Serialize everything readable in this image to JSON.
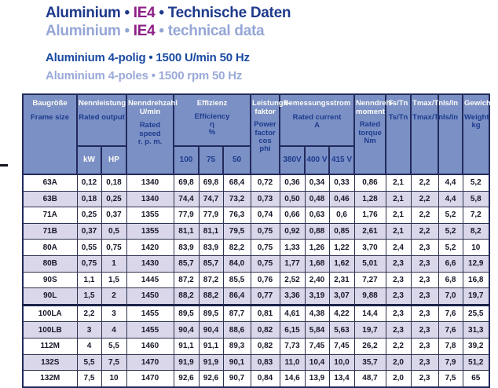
{
  "colors": {
    "header_bg": "#7b90c5",
    "row_alt": "#d9d7e9",
    "border_navy": "#222a5c",
    "title_blue": "#1e3a8c",
    "title_purple": "#8e1f87",
    "title_light_blue": "#95a6d6",
    "subtitle_blue": "#1b4aa2",
    "subtitle_light_blue": "#9aa9d8",
    "header_text_white": "#fdfcf6",
    "header_text_navy": "#1e3c8e",
    "data_text": "#18182a"
  },
  "header": {
    "bullet": "•",
    "title_de": {
      "brand": "Aluminium",
      "ie_class": "IE4",
      "rest": "Technische Daten"
    },
    "title_en": {
      "brand": "Aluminium",
      "ie_class": "IE4",
      "rest": "technical data"
    },
    "subtitle_de": "Aluminium 4-polig • 1500 U/min 50 Hz",
    "subtitle_en": "Aluminium 4-poles • 1500 rpm 50 Hz"
  },
  "table": {
    "header": {
      "frame_de": "Baugröße",
      "frame_en": "Frame size",
      "output_de": "Nennleistung",
      "output_en": "Rated output",
      "kw": "kW",
      "hp": "HP",
      "speed_de": "Nenndrehzahl\nU/min",
      "speed_en": "Rated speed\nr. p. m.",
      "eff_de": "Effizienz",
      "eff_en": "Efficiency\nη\n%",
      "eff100": "100",
      "eff75": "75",
      "eff50": "50",
      "pf_de": "Leistungs-\nfaktor",
      "pf_en": "Power\nfactor\ncos phi",
      "current_de": "Bemessungsstrom",
      "current_en": "Rated current\nA",
      "v380": "380V",
      "v400": "400 V",
      "v415": "415 V",
      "torque_de": "Nenndreh-\nmoment",
      "torque_en": "Rated\ntorque\nNm",
      "ts_de": "Ts/Tn",
      "ts_en": "Ts/Tn",
      "tmax_de": "Tmax/Tn",
      "tmax_en": "Tmax/Tn",
      "isin_de": "Is/In",
      "isin_en": "Is/In",
      "weight_de": "Gewicht",
      "weight_en": "Weight\nkg"
    },
    "thick_divider_before_row_index": 8,
    "rows": [
      [
        "63A",
        "0,12",
        "0,18",
        "1340",
        "69,8",
        "69,8",
        "68,4",
        "0,72",
        "0,36",
        "0,34",
        "0,33",
        "0,86",
        "2,1",
        "2,2",
        "4,4",
        "5,2"
      ],
      [
        "63B",
        "0,18",
        "0,25",
        "1340",
        "74,4",
        "74,7",
        "73,2",
        "0,73",
        "0,50",
        "0,48",
        "0,46",
        "1,28",
        "2,1",
        "2,2",
        "4,4",
        "5,8"
      ],
      [
        "71A",
        "0,25",
        "0,37",
        "1355",
        "77,9",
        "77,9",
        "76,3",
        "0,74",
        "0,66",
        "0,63",
        "0,6",
        "1,76",
        "2,1",
        "2,2",
        "5,2",
        "7,2"
      ],
      [
        "71B",
        "0,37",
        "0,5",
        "1355",
        "81,1",
        "81,1",
        "79,5",
        "0,75",
        "0,92",
        "0,88",
        "0,85",
        "2,61",
        "2,1",
        "2,2",
        "5,2",
        "8,2"
      ],
      [
        "80A",
        "0,55",
        "0,75",
        "1420",
        "83,9",
        "83,9",
        "82,2",
        "0,75",
        "1,33",
        "1,26",
        "1,22",
        "3,70",
        "2,4",
        "2,3",
        "5,2",
        "10"
      ],
      [
        "80B",
        "0,75",
        "1",
        "1430",
        "85,7",
        "85,7",
        "84,0",
        "0,75",
        "1,77",
        "1,68",
        "1,62",
        "5,01",
        "2,3",
        "2,3",
        "6,6",
        "12,9"
      ],
      [
        "90S",
        "1,1",
        "1,5",
        "1445",
        "87,2",
        "87,2",
        "85,5",
        "0,76",
        "2,52",
        "2,40",
        "2,31",
        "7,27",
        "2,3",
        "2,3",
        "6,8",
        "16,8"
      ],
      [
        "90L",
        "1,5",
        "2",
        "1450",
        "88,2",
        "88,2",
        "86,4",
        "0,77",
        "3,36",
        "3,19",
        "3,07",
        "9,88",
        "2,3",
        "2,3",
        "7,0",
        "19,7"
      ],
      [
        "100LA",
        "2,2",
        "3",
        "1455",
        "89,5",
        "89,5",
        "87,7",
        "0,81",
        "4,61",
        "4,38",
        "4,22",
        "14,4",
        "2,3",
        "2,3",
        "7,6",
        "25,5"
      ],
      [
        "100LB",
        "3",
        "4",
        "1455",
        "90,4",
        "90,4",
        "88,6",
        "0,82",
        "6,15",
        "5,84",
        "5,63",
        "19,7",
        "2,3",
        "2,3",
        "7,6",
        "31,3"
      ],
      [
        "112M",
        "4",
        "5,5",
        "1460",
        "91,1",
        "91,1",
        "89,3",
        "0,82",
        "7,73",
        "7,45",
        "7,45",
        "26,2",
        "2,2",
        "2,3",
        "7,8",
        "39,2"
      ],
      [
        "132S",
        "5,5",
        "7,5",
        "1470",
        "91,9",
        "91,9",
        "90,1",
        "0,83",
        "11,0",
        "10,4",
        "10,0",
        "35,7",
        "2,0",
        "2,3",
        "7,9",
        "51,2"
      ],
      [
        "132M",
        "7,5",
        "10",
        "1470",
        "92,6",
        "92,6",
        "90,7",
        "0,84",
        "14,6",
        "13,9",
        "13,4",
        "48,7",
        "2,0",
        "2,3",
        "7,5",
        "65"
      ]
    ]
  }
}
